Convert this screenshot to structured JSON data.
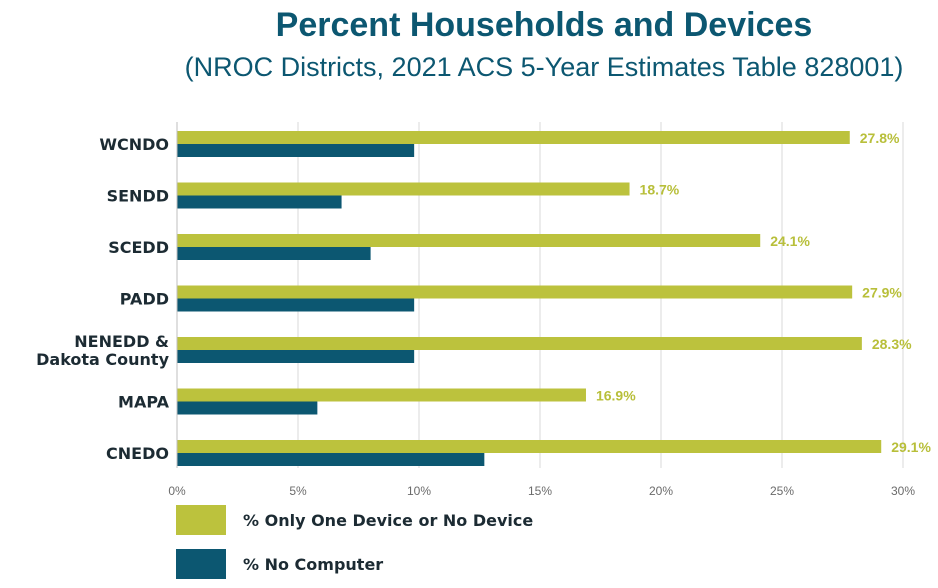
{
  "chart_data": {
    "type": "bar",
    "orientation": "horizontal",
    "title": "Percent Households and Devices",
    "subtitle": "(NROC Districts, 2021 ACS 5-Year Estimates Table 828001)",
    "categories": [
      "WCNDO",
      "SENDD",
      "SCEDD",
      "PADD",
      "NENEDD & Dakota County",
      "MAPA",
      "CNEDO"
    ],
    "category_lines": [
      [
        "WCNDO"
      ],
      [
        "SENDD"
      ],
      [
        "SCEDD"
      ],
      [
        "PADD"
      ],
      [
        "NENEDD &",
        "Dakota County"
      ],
      [
        "MAPA"
      ],
      [
        "CNEDO"
      ]
    ],
    "series": [
      {
        "name": "% Only One Device or No Device",
        "color": "#bcc23d",
        "values": [
          27.8,
          18.7,
          24.1,
          27.9,
          28.3,
          16.9,
          29.1
        ],
        "labels": [
          "27.8%",
          "18.7%",
          "24.1%",
          "27.9%",
          "28.3%",
          "16.9%",
          "29.1%"
        ]
      },
      {
        "name": "% No Computer",
        "color": "#0c5771",
        "values": [
          9.8,
          6.8,
          8.0,
          9.8,
          9.8,
          5.8,
          12.7
        ]
      }
    ],
    "xlim": [
      0,
      30
    ],
    "ticks": [
      0,
      5,
      10,
      15,
      20,
      25,
      30
    ],
    "tick_labels": [
      "0%",
      "5%",
      "10%",
      "15%",
      "20%",
      "25%",
      "30%"
    ],
    "grid": true,
    "legend_position": "bottom-left"
  }
}
